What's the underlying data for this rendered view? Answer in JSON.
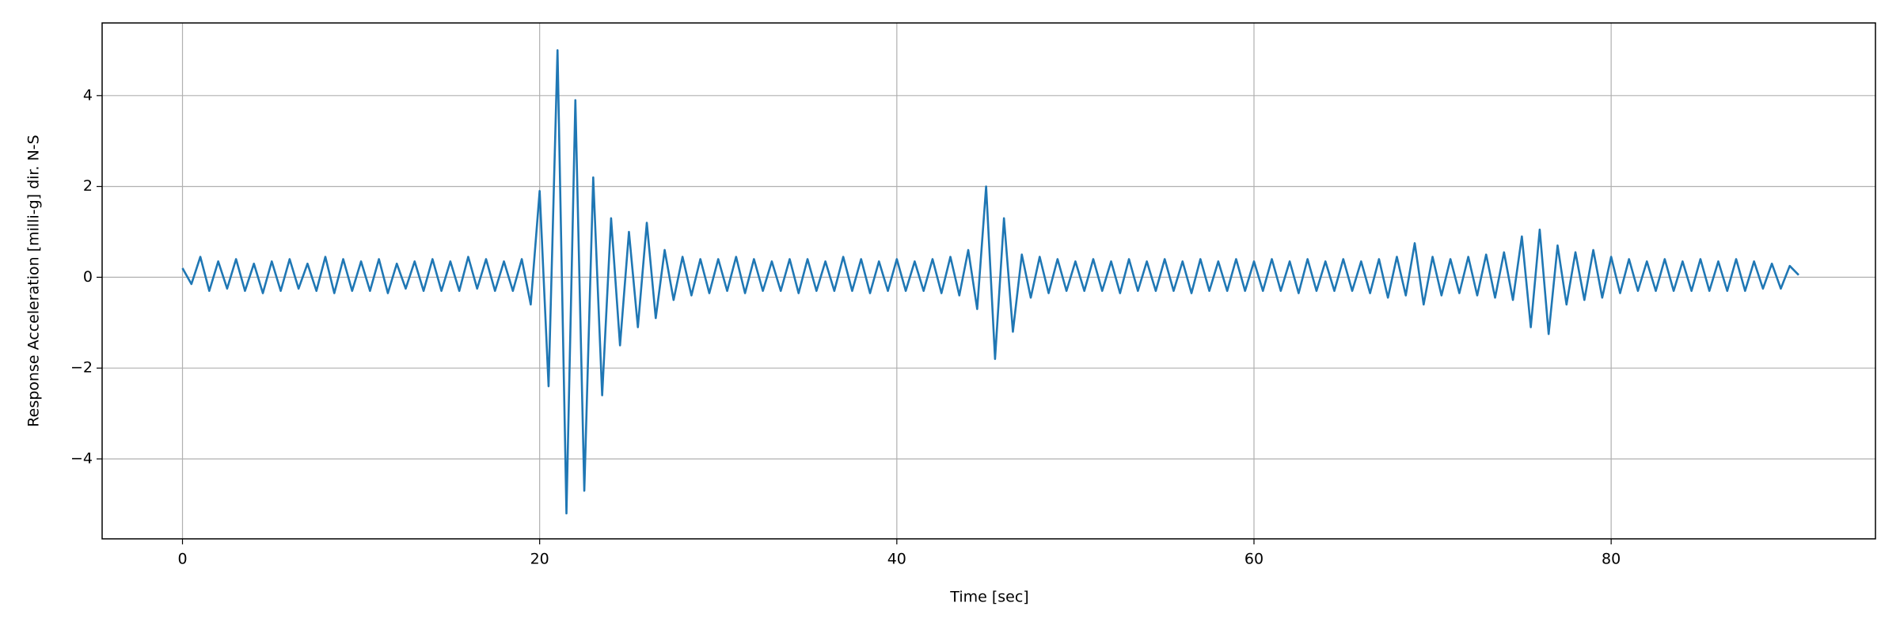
{
  "chart_data": {
    "type": "line",
    "xlabel": "Time [sec]",
    "ylabel": "Response Acceleration [milli-g] dir. N-S",
    "x": [
      0,
      0.5,
      1,
      1.5,
      2,
      2.5,
      3,
      3.5,
      4,
      4.5,
      5,
      5.5,
      6,
      6.5,
      7,
      7.5,
      8,
      8.5,
      9,
      9.5,
      10,
      10.5,
      11,
      11.5,
      12,
      12.5,
      13,
      13.5,
      14,
      14.5,
      15,
      15.5,
      16,
      16.5,
      17,
      17.5,
      18,
      18.5,
      19,
      19.5,
      20,
      20.5,
      21,
      21.5,
      22,
      22.5,
      23,
      23.5,
      24,
      24.5,
      25,
      25.5,
      26,
      26.5,
      27,
      27.5,
      28,
      28.5,
      29,
      29.5,
      30,
      30.5,
      31,
      31.5,
      32,
      32.5,
      33,
      33.5,
      34,
      34.5,
      35,
      35.5,
      36,
      36.5,
      37,
      37.5,
      38,
      38.5,
      39,
      39.5,
      40,
      40.5,
      41,
      41.5,
      42,
      42.5,
      43,
      43.5,
      44,
      44.5,
      45,
      45.5,
      46,
      46.5,
      47,
      47.5,
      48,
      48.5,
      49,
      49.5,
      50,
      50.5,
      51,
      51.5,
      52,
      52.5,
      53,
      53.5,
      54,
      54.5,
      55,
      55.5,
      56,
      56.5,
      57,
      57.5,
      58,
      58.5,
      59,
      59.5,
      60,
      60.5,
      61,
      61.5,
      62,
      62.5,
      63,
      63.5,
      64,
      64.5,
      65,
      65.5,
      66,
      66.5,
      67,
      67.5,
      68,
      68.5,
      69,
      69.5,
      70,
      70.5,
      71,
      71.5,
      72,
      72.5,
      73,
      73.5,
      74,
      74.5,
      75,
      75.5,
      76,
      76.5,
      77,
      77.5,
      78,
      78.5,
      79,
      79.5,
      80,
      80.5,
      81,
      81.5,
      82,
      82.5,
      83,
      83.5,
      84,
      84.5,
      85,
      85.5,
      86,
      86.5,
      87,
      87.5,
      88,
      88.5,
      89,
      89.5,
      90,
      90.5
    ],
    "series": [
      {
        "color": "#1f77b4",
        "values": [
          0.2,
          -0.15,
          0.45,
          -0.3,
          0.35,
          -0.25,
          0.4,
          -0.3,
          0.3,
          -0.35,
          0.35,
          -0.3,
          0.4,
          -0.25,
          0.3,
          -0.3,
          0.45,
          -0.35,
          0.4,
          -0.3,
          0.35,
          -0.3,
          0.4,
          -0.35,
          0.3,
          -0.25,
          0.35,
          -0.3,
          0.4,
          -0.3,
          0.35,
          -0.3,
          0.45,
          -0.25,
          0.4,
          -0.3,
          0.35,
          -0.3,
          0.4,
          -0.6,
          1.9,
          -2.4,
          5.0,
          -5.2,
          3.9,
          -4.7,
          2.2,
          -2.6,
          1.3,
          -1.5,
          1.0,
          -1.1,
          1.2,
          -0.9,
          0.6,
          -0.5,
          0.45,
          -0.4,
          0.4,
          -0.35,
          0.4,
          -0.3,
          0.45,
          -0.35,
          0.4,
          -0.3,
          0.35,
          -0.3,
          0.4,
          -0.35,
          0.4,
          -0.3,
          0.35,
          -0.3,
          0.45,
          -0.3,
          0.4,
          -0.35,
          0.35,
          -0.3,
          0.4,
          -0.3,
          0.35,
          -0.3,
          0.4,
          -0.35,
          0.45,
          -0.4,
          0.6,
          -0.7,
          2.0,
          -1.8,
          1.3,
          -1.2,
          0.5,
          -0.45,
          0.45,
          -0.35,
          0.4,
          -0.3,
          0.35,
          -0.3,
          0.4,
          -0.3,
          0.35,
          -0.35,
          0.4,
          -0.3,
          0.35,
          -0.3,
          0.4,
          -0.3,
          0.35,
          -0.35,
          0.4,
          -0.3,
          0.35,
          -0.3,
          0.4,
          -0.3,
          0.35,
          -0.3,
          0.4,
          -0.3,
          0.35,
          -0.35,
          0.4,
          -0.3,
          0.35,
          -0.3,
          0.4,
          -0.3,
          0.35,
          -0.35,
          0.4,
          -0.45,
          0.45,
          -0.4,
          0.75,
          -0.6,
          0.45,
          -0.4,
          0.4,
          -0.35,
          0.45,
          -0.4,
          0.5,
          -0.45,
          0.55,
          -0.5,
          0.9,
          -1.1,
          1.05,
          -1.25,
          0.7,
          -0.6,
          0.55,
          -0.5,
          0.6,
          -0.45,
          0.45,
          -0.35,
          0.4,
          -0.3,
          0.35,
          -0.3,
          0.4,
          -0.3,
          0.35,
          -0.3,
          0.4,
          -0.3,
          0.35,
          -0.3,
          0.4,
          -0.3,
          0.35,
          -0.25,
          0.3,
          -0.25,
          0.25,
          0.05
        ]
      }
    ],
    "xlim": [
      -4.5,
      94.8
    ],
    "ylim": [
      -5.76,
      5.6
    ],
    "xticks": [
      0,
      20,
      40,
      60,
      80
    ],
    "yticks": [
      {
        "value": -4,
        "label": "−4"
      },
      {
        "value": -2,
        "label": "−2"
      },
      0,
      2,
      4
    ],
    "grid": true
  }
}
